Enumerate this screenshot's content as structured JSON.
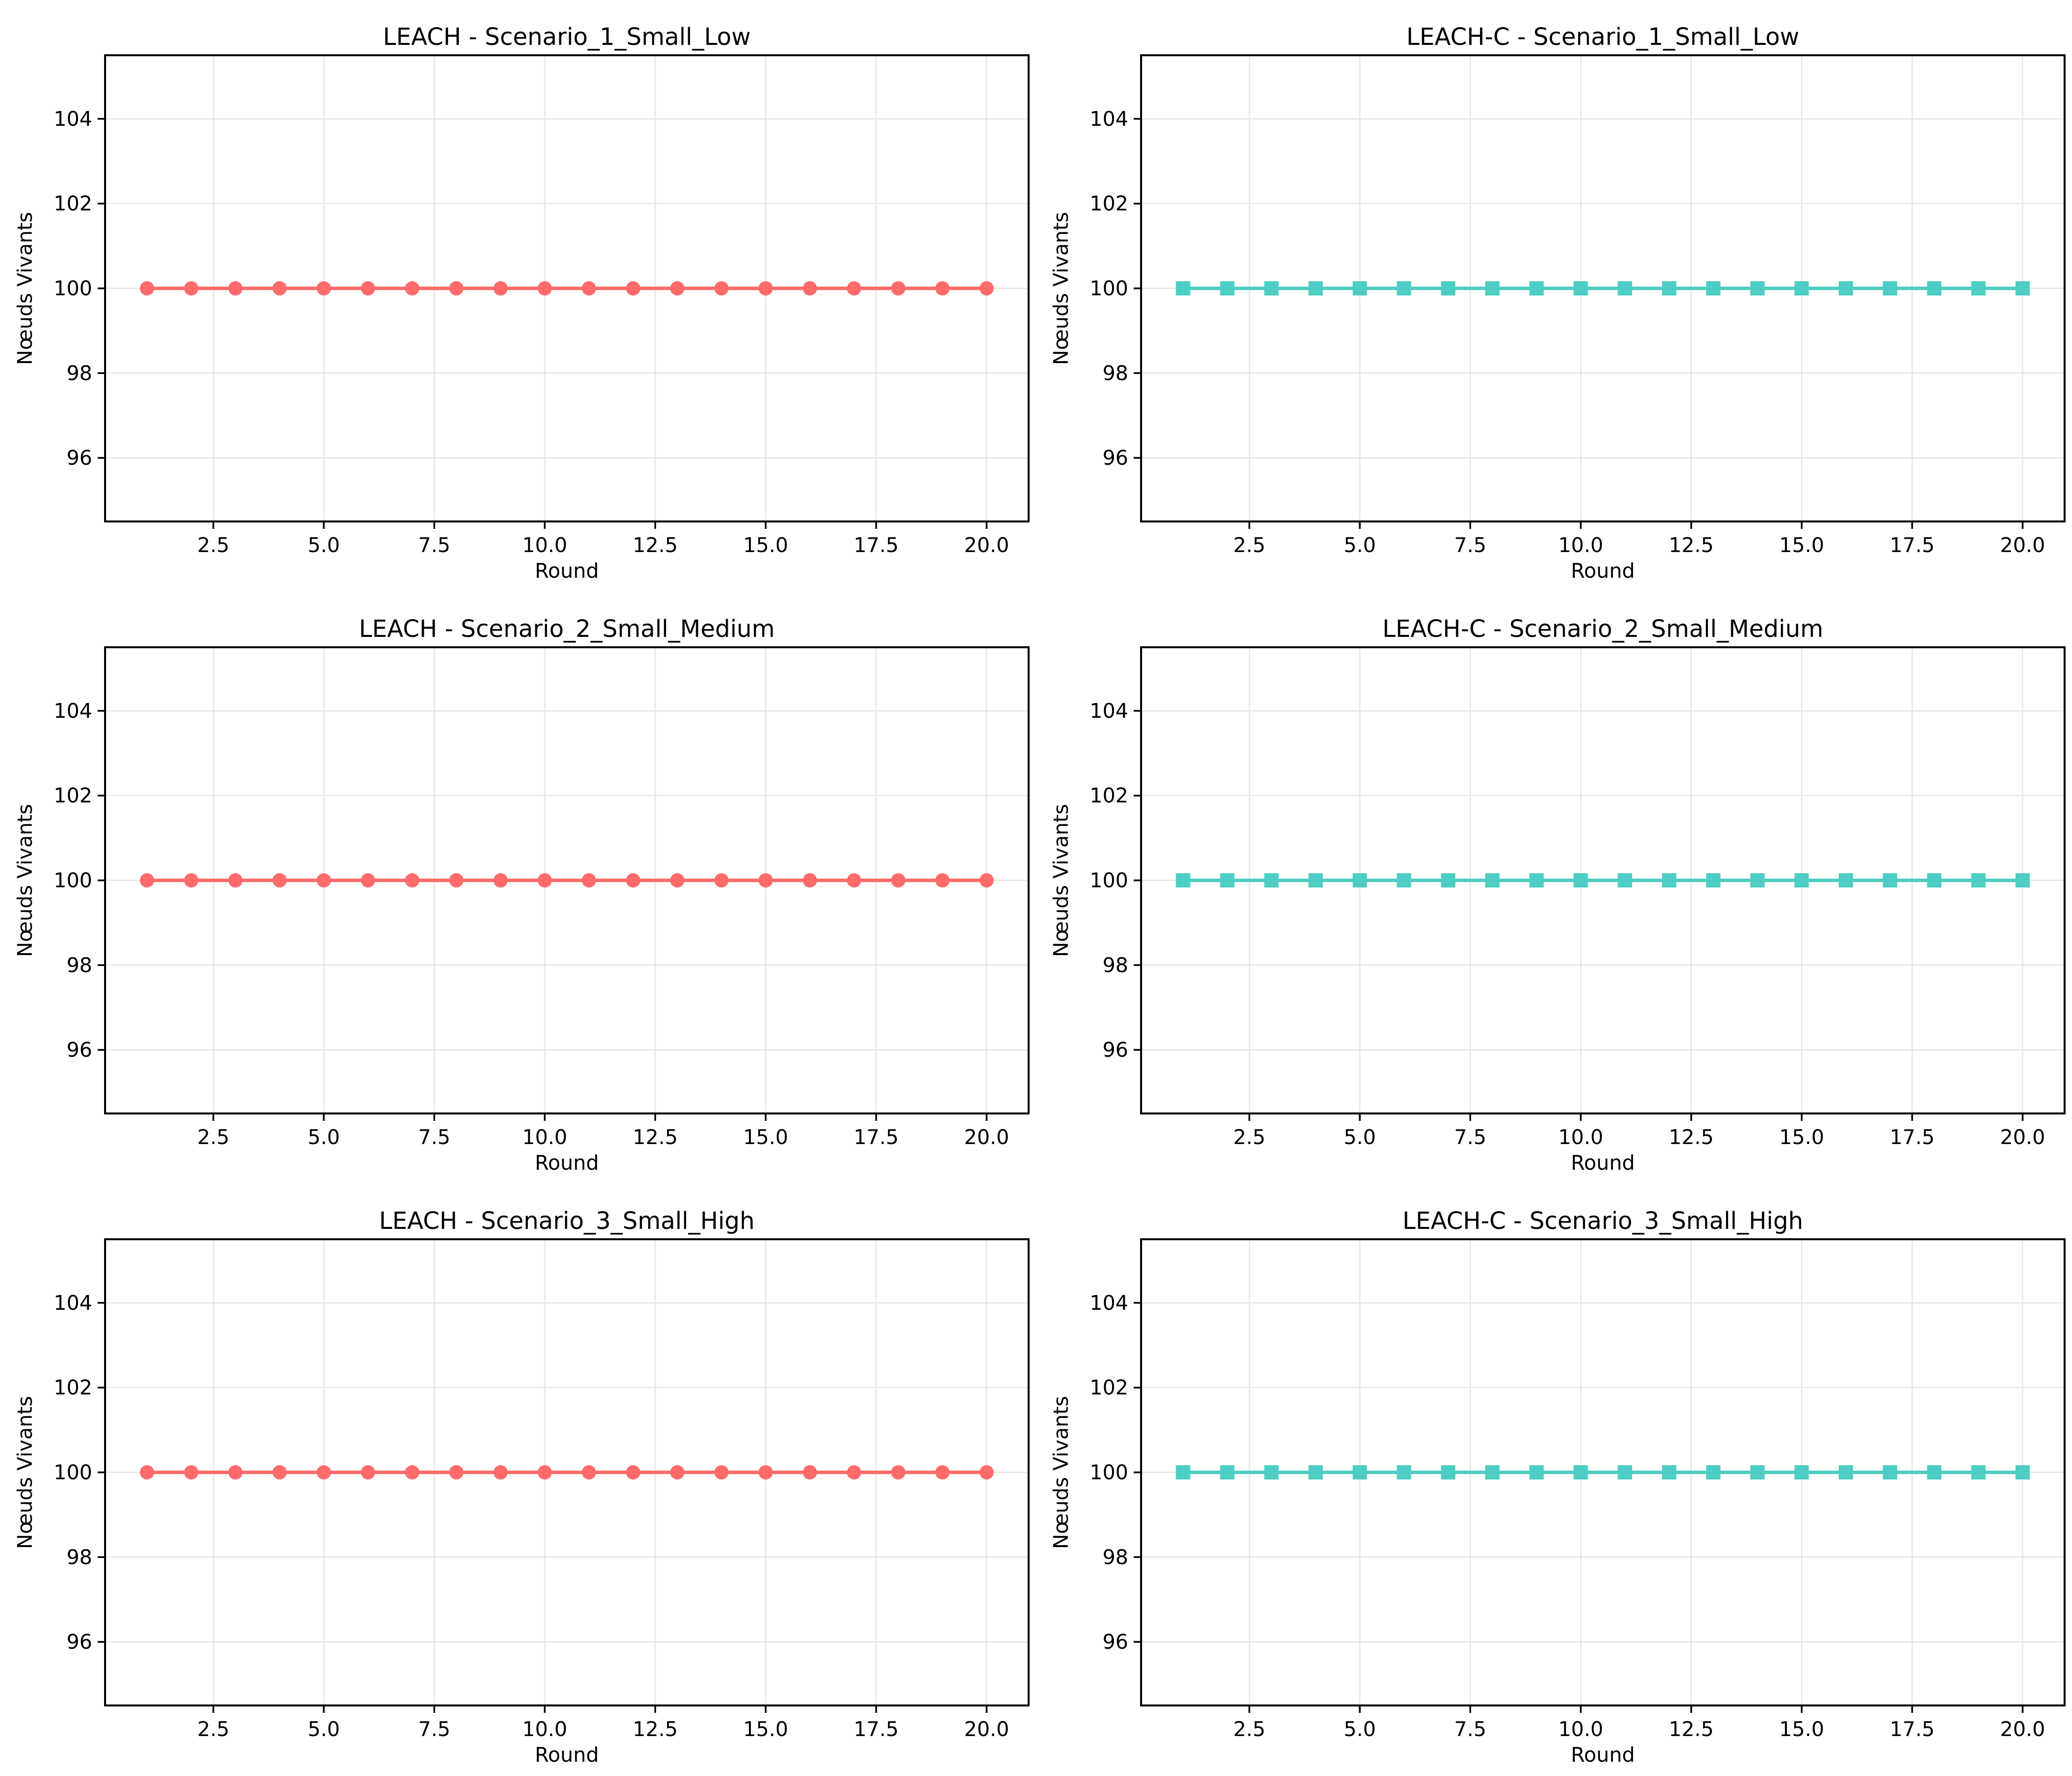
{
  "style": {
    "background": "#ffffff",
    "grid_color": "#e7e7e7",
    "axis_color": "#000000",
    "text_color": "#000000",
    "leach_color": "#FF6B6B",
    "leach_c_color": "#4ECDC4"
  },
  "chart_data": [
    {
      "id": "leach-scenario-1-small-low",
      "type": "line",
      "title": "LEACH - Scenario_1_Small_Low",
      "xlabel": "Round",
      "ylabel": "Nœuds Vivants",
      "grid": true,
      "legend_position": "none",
      "xlim": [
        0.05,
        20.95
      ],
      "ylim": [
        94.5,
        105.5
      ],
      "x_ticks": [
        2.5,
        5.0,
        7.5,
        10.0,
        12.5,
        15.0,
        17.5,
        20.0
      ],
      "x_tick_labels": [
        "2.5",
        "5.0",
        "7.5",
        "10.0",
        "12.5",
        "15.0",
        "17.5",
        "20.0"
      ],
      "y_ticks": [
        96,
        98,
        100,
        102,
        104
      ],
      "y_tick_labels": [
        "96",
        "98",
        "100",
        "102",
        "104"
      ],
      "series": [
        {
          "name": "LEACH",
          "color": "#FF6B6B",
          "marker": "circle",
          "x": [
            1,
            2,
            3,
            4,
            5,
            6,
            7,
            8,
            9,
            10,
            11,
            12,
            13,
            14,
            15,
            16,
            17,
            18,
            19,
            20
          ],
          "y": [
            100,
            100,
            100,
            100,
            100,
            100,
            100,
            100,
            100,
            100,
            100,
            100,
            100,
            100,
            100,
            100,
            100,
            100,
            100,
            100
          ]
        }
      ]
    },
    {
      "id": "leach-c-scenario-1-small-low",
      "type": "line",
      "title": "LEACH-C - Scenario_1_Small_Low",
      "xlabel": "Round",
      "ylabel": "Nœuds Vivants",
      "grid": true,
      "legend_position": "none",
      "xlim": [
        0.05,
        20.95
      ],
      "ylim": [
        94.5,
        105.5
      ],
      "x_ticks": [
        2.5,
        5.0,
        7.5,
        10.0,
        12.5,
        15.0,
        17.5,
        20.0
      ],
      "x_tick_labels": [
        "2.5",
        "5.0",
        "7.5",
        "10.0",
        "12.5",
        "15.0",
        "17.5",
        "20.0"
      ],
      "y_ticks": [
        96,
        98,
        100,
        102,
        104
      ],
      "y_tick_labels": [
        "96",
        "98",
        "100",
        "102",
        "104"
      ],
      "series": [
        {
          "name": "LEACH-C",
          "color": "#4ECDC4",
          "marker": "square",
          "x": [
            1,
            2,
            3,
            4,
            5,
            6,
            7,
            8,
            9,
            10,
            11,
            12,
            13,
            14,
            15,
            16,
            17,
            18,
            19,
            20
          ],
          "y": [
            100,
            100,
            100,
            100,
            100,
            100,
            100,
            100,
            100,
            100,
            100,
            100,
            100,
            100,
            100,
            100,
            100,
            100,
            100,
            100
          ]
        }
      ]
    },
    {
      "id": "leach-scenario-2-small-medium",
      "type": "line",
      "title": "LEACH - Scenario_2_Small_Medium",
      "xlabel": "Round",
      "ylabel": "Nœuds Vivants",
      "grid": true,
      "legend_position": "none",
      "xlim": [
        0.05,
        20.95
      ],
      "ylim": [
        94.5,
        105.5
      ],
      "x_ticks": [
        2.5,
        5.0,
        7.5,
        10.0,
        12.5,
        15.0,
        17.5,
        20.0
      ],
      "x_tick_labels": [
        "2.5",
        "5.0",
        "7.5",
        "10.0",
        "12.5",
        "15.0",
        "17.5",
        "20.0"
      ],
      "y_ticks": [
        96,
        98,
        100,
        102,
        104
      ],
      "y_tick_labels": [
        "96",
        "98",
        "100",
        "102",
        "104"
      ],
      "series": [
        {
          "name": "LEACH",
          "color": "#FF6B6B",
          "marker": "circle",
          "x": [
            1,
            2,
            3,
            4,
            5,
            6,
            7,
            8,
            9,
            10,
            11,
            12,
            13,
            14,
            15,
            16,
            17,
            18,
            19,
            20
          ],
          "y": [
            100,
            100,
            100,
            100,
            100,
            100,
            100,
            100,
            100,
            100,
            100,
            100,
            100,
            100,
            100,
            100,
            100,
            100,
            100,
            100
          ]
        }
      ]
    },
    {
      "id": "leach-c-scenario-2-small-medium",
      "type": "line",
      "title": "LEACH-C - Scenario_2_Small_Medium",
      "xlabel": "Round",
      "ylabel": "Nœuds Vivants",
      "grid": true,
      "legend_position": "none",
      "xlim": [
        0.05,
        20.95
      ],
      "ylim": [
        94.5,
        105.5
      ],
      "x_ticks": [
        2.5,
        5.0,
        7.5,
        10.0,
        12.5,
        15.0,
        17.5,
        20.0
      ],
      "x_tick_labels": [
        "2.5",
        "5.0",
        "7.5",
        "10.0",
        "12.5",
        "15.0",
        "17.5",
        "20.0"
      ],
      "y_ticks": [
        96,
        98,
        100,
        102,
        104
      ],
      "y_tick_labels": [
        "96",
        "98",
        "100",
        "102",
        "104"
      ],
      "series": [
        {
          "name": "LEACH-C",
          "color": "#4ECDC4",
          "marker": "square",
          "x": [
            1,
            2,
            3,
            4,
            5,
            6,
            7,
            8,
            9,
            10,
            11,
            12,
            13,
            14,
            15,
            16,
            17,
            18,
            19,
            20
          ],
          "y": [
            100,
            100,
            100,
            100,
            100,
            100,
            100,
            100,
            100,
            100,
            100,
            100,
            100,
            100,
            100,
            100,
            100,
            100,
            100,
            100
          ]
        }
      ]
    },
    {
      "id": "leach-scenario-3-small-high",
      "type": "line",
      "title": "LEACH - Scenario_3_Small_High",
      "xlabel": "Round",
      "ylabel": "Nœuds Vivants",
      "grid": true,
      "legend_position": "none",
      "xlim": [
        0.05,
        20.95
      ],
      "ylim": [
        94.5,
        105.5
      ],
      "x_ticks": [
        2.5,
        5.0,
        7.5,
        10.0,
        12.5,
        15.0,
        17.5,
        20.0
      ],
      "x_tick_labels": [
        "2.5",
        "5.0",
        "7.5",
        "10.0",
        "12.5",
        "15.0",
        "17.5",
        "20.0"
      ],
      "y_ticks": [
        96,
        98,
        100,
        102,
        104
      ],
      "y_tick_labels": [
        "96",
        "98",
        "100",
        "102",
        "104"
      ],
      "series": [
        {
          "name": "LEACH",
          "color": "#FF6B6B",
          "marker": "circle",
          "x": [
            1,
            2,
            3,
            4,
            5,
            6,
            7,
            8,
            9,
            10,
            11,
            12,
            13,
            14,
            15,
            16,
            17,
            18,
            19,
            20
          ],
          "y": [
            100,
            100,
            100,
            100,
            100,
            100,
            100,
            100,
            100,
            100,
            100,
            100,
            100,
            100,
            100,
            100,
            100,
            100,
            100,
            100
          ]
        }
      ]
    },
    {
      "id": "leach-c-scenario-3-small-high",
      "type": "line",
      "title": "LEACH-C - Scenario_3_Small_High",
      "xlabel": "Round",
      "ylabel": "Nœuds Vivants",
      "grid": true,
      "legend_position": "none",
      "xlim": [
        0.05,
        20.95
      ],
      "ylim": [
        94.5,
        105.5
      ],
      "x_ticks": [
        2.5,
        5.0,
        7.5,
        10.0,
        12.5,
        15.0,
        17.5,
        20.0
      ],
      "x_tick_labels": [
        "2.5",
        "5.0",
        "7.5",
        "10.0",
        "12.5",
        "15.0",
        "17.5",
        "20.0"
      ],
      "y_ticks": [
        96,
        98,
        100,
        102,
        104
      ],
      "y_tick_labels": [
        "96",
        "98",
        "100",
        "102",
        "104"
      ],
      "series": [
        {
          "name": "LEACH-C",
          "color": "#4ECDC4",
          "marker": "square",
          "x": [
            1,
            2,
            3,
            4,
            5,
            6,
            7,
            8,
            9,
            10,
            11,
            12,
            13,
            14,
            15,
            16,
            17,
            18,
            19,
            20
          ],
          "y": [
            100,
            100,
            100,
            100,
            100,
            100,
            100,
            100,
            100,
            100,
            100,
            100,
            100,
            100,
            100,
            100,
            100,
            100,
            100,
            100
          ]
        }
      ]
    }
  ]
}
